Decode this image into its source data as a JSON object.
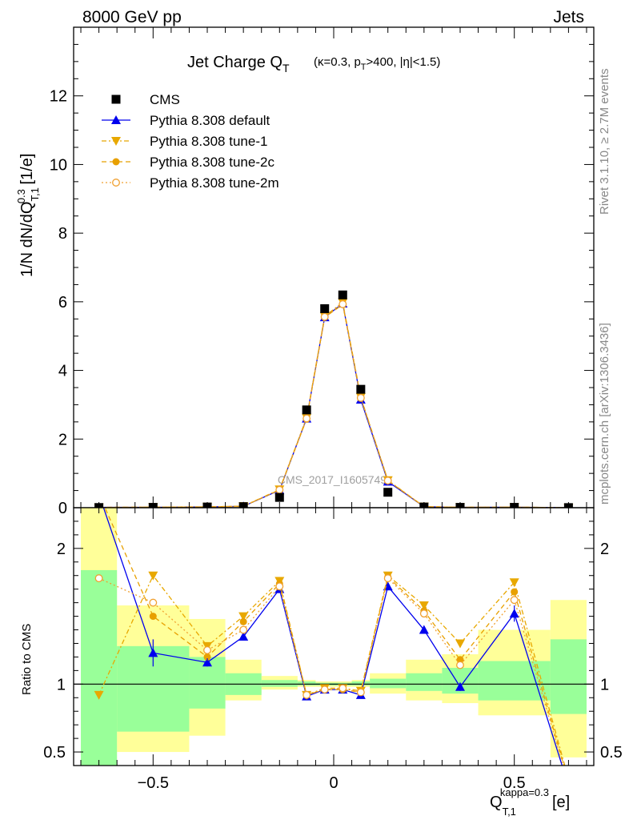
{
  "header": {
    "left": "8000 GeV pp",
    "right": "Jets",
    "side_rivet": "Rivet 3.1.10, ≥ 2.7M events",
    "side_mcplots": "mcplots.cern.ch [arXiv:1306.3436]"
  },
  "chart_data": {
    "type": "line",
    "title": "Jet Charge Q_T (κ=0.3, p_T>400, |η|<1.5)",
    "watermark": "CMS_2017_I1605749",
    "xlabel": "Q_T,1^kappa=0.3 [e]",
    "ylabel": "1/N dN/dQ_T,1^0.3 [1/e]",
    "ratio_ylabel": "Ratio to CMS",
    "xlim": [
      -0.72,
      0.72
    ],
    "ylim": [
      0,
      14
    ],
    "ratio_ylim": [
      0.4,
      2.3
    ],
    "xticks": [
      -0.5,
      0,
      0.5
    ],
    "xtick_labels": [
      "−0.5",
      "0",
      "0.5"
    ],
    "yticks": [
      0,
      2,
      4,
      6,
      8,
      10,
      12
    ],
    "ratio_yticks": [
      0.5,
      1,
      2
    ],
    "x": [
      -0.65,
      -0.5,
      -0.35,
      -0.25,
      -0.15,
      -0.075,
      -0.025,
      0.025,
      0.075,
      0.15,
      0.25,
      0.35,
      0.5,
      0.65
    ],
    "bin_edges": [
      -0.7,
      -0.6,
      -0.4,
      -0.3,
      -0.2,
      -0.1,
      -0.05,
      0,
      0.05,
      0.1,
      0.2,
      0.3,
      0.4,
      0.6,
      0.7
    ],
    "series": [
      {
        "name": "CMS",
        "color": "#000000",
        "values": [
          0.005,
          0.01,
          0.02,
          0.03,
          0.3,
          2.85,
          5.8,
          6.2,
          3.45,
          0.45,
          0.02,
          0.01,
          0.01,
          0.003
        ]
      },
      {
        "name": "Pythia 8.308 default",
        "color": "#0000ee",
        "values": [
          0.012,
          0.012,
          0.023,
          0.04,
          0.51,
          2.6,
          5.55,
          5.95,
          3.15,
          0.76,
          0.03,
          0.01,
          0.015,
          0.001
        ],
        "ratio": [
          2.4,
          1.23,
          1.16,
          1.35,
          1.7,
          0.91,
          0.96,
          0.96,
          0.92,
          1.72,
          1.4,
          0.98,
          1.52,
          0.25
        ]
      },
      {
        "name": "Pythia 8.308 tune-1",
        "color": "#e8a800",
        "values": [
          0.005,
          0.018,
          0.025,
          0.045,
          0.53,
          2.62,
          5.58,
          5.98,
          3.22,
          0.8,
          0.032,
          0.013,
          0.017,
          0.001
        ],
        "ratio": [
          0.92,
          1.8,
          1.28,
          1.5,
          1.76,
          0.92,
          0.97,
          0.97,
          0.95,
          1.8,
          1.58,
          1.3,
          1.75,
          0.3
        ]
      },
      {
        "name": "Pythia 8.308 tune-2c",
        "color": "#e8a000",
        "values": [
          0.012,
          0.015,
          0.024,
          0.043,
          0.52,
          2.58,
          5.55,
          5.92,
          3.2,
          0.79,
          0.031,
          0.012,
          0.016,
          0.001
        ],
        "ratio": [
          2.4,
          1.5,
          1.2,
          1.46,
          1.74,
          0.92,
          0.96,
          0.96,
          0.94,
          1.79,
          1.54,
          1.18,
          1.68,
          0.28
        ]
      },
      {
        "name": "Pythia 8.308 tune-2m",
        "color": "#f0a030",
        "values": [
          0.009,
          0.016,
          0.025,
          0.04,
          0.52,
          2.6,
          5.56,
          5.93,
          3.2,
          0.79,
          0.03,
          0.012,
          0.016,
          0.001
        ],
        "ratio": [
          1.78,
          1.6,
          1.25,
          1.4,
          1.72,
          0.92,
          0.96,
          0.97,
          0.94,
          1.78,
          1.52,
          1.14,
          1.62,
          0.27
        ]
      }
    ],
    "ratio_band_green": [
      [
        0.32,
        1.84
      ],
      [
        0.65,
        1.28
      ],
      [
        0.82,
        1.2
      ],
      [
        0.92,
        1.08
      ],
      [
        0.98,
        1.03
      ],
      [
        0.99,
        1.02
      ],
      [
        0.99,
        1.01
      ],
      [
        0.99,
        1.01
      ],
      [
        0.99,
        1.02
      ],
      [
        0.97,
        1.04
      ],
      [
        0.95,
        1.08
      ],
      [
        0.93,
        1.12
      ],
      [
        0.88,
        1.17
      ],
      [
        0.78,
        1.33
      ]
    ],
    "ratio_band_yellow": [
      [
        0.3,
        2.3
      ],
      [
        0.5,
        1.58
      ],
      [
        0.62,
        1.48
      ],
      [
        0.88,
        1.18
      ],
      [
        0.96,
        1.06
      ],
      [
        0.98,
        1.03
      ],
      [
        0.98,
        1.02
      ],
      [
        0.98,
        1.02
      ],
      [
        0.98,
        1.03
      ],
      [
        0.93,
        1.08
      ],
      [
        0.88,
        1.18
      ],
      [
        0.86,
        1.22
      ],
      [
        0.77,
        1.4
      ],
      [
        0.46,
        1.62
      ]
    ],
    "legend_placement": "top-left",
    "grid": false
  }
}
